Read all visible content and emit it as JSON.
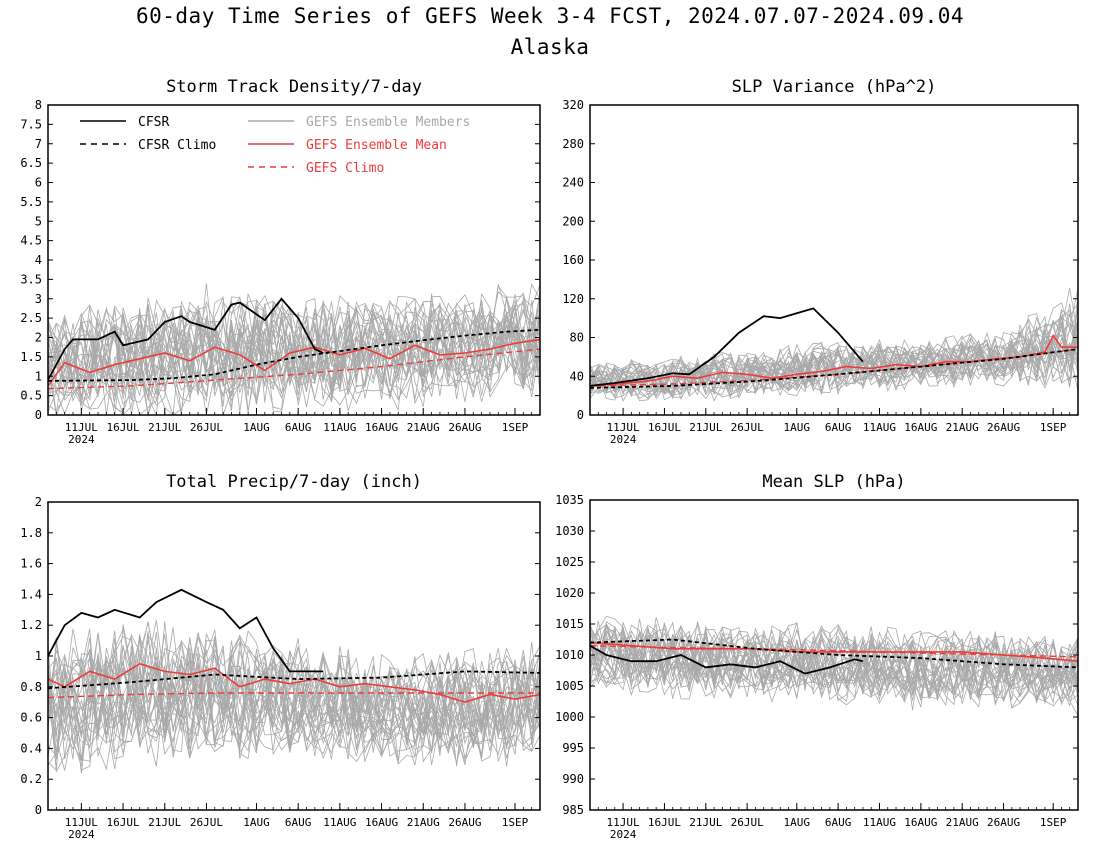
{
  "figure": {
    "title": "60-day Time Series of GEFS Week 3-4 FCST, 2024.07.07-2024.09.04",
    "subtitle": "Alaska"
  },
  "colors": {
    "cfsr": "#000000",
    "members": "#a9a9a9",
    "ens_mean": "#ee3a3a",
    "gefs_clim": "#ee3a3a",
    "axes": "#000000"
  },
  "legend": {
    "placement": "top-left of first panel",
    "entries": [
      {
        "key": "cfsr",
        "label": "CFSR",
        "style": "solid",
        "color": "#000000"
      },
      {
        "key": "cfsr_clim",
        "label": "CFSR Climo",
        "style": "dashed",
        "color": "#000000"
      },
      {
        "key": "members",
        "label": "GEFS Ensemble Members",
        "style": "solid",
        "color": "#a9a9a9"
      },
      {
        "key": "ens_mean",
        "label": "GEFS Ensemble Mean",
        "style": "solid",
        "color": "#ee3a3a"
      },
      {
        "key": "gefs_clim",
        "label": "GEFS Climo",
        "style": "dashed",
        "color": "#ee3a3a"
      }
    ]
  },
  "chart_data": [
    {
      "type": "line",
      "title": "Storm Track Density/7-day",
      "x_start": "2024-07-07",
      "x_end": "2024-09-04",
      "xtick_labels": [
        "11JUL",
        "16JUL",
        "21JUL",
        "26JUL",
        "1AUG",
        "6AUG",
        "11AUG",
        "16AUG",
        "21AUG",
        "26AUG",
        "1SEP"
      ],
      "xtick_dates": [
        "2024-07-11",
        "2024-07-16",
        "2024-07-21",
        "2024-07-26",
        "2024-08-01",
        "2024-08-06",
        "2024-08-11",
        "2024-08-16",
        "2024-08-21",
        "2024-08-26",
        "2024-09-01"
      ],
      "year_label": "2024",
      "ylim": [
        0,
        8
      ],
      "ytick_labels": [
        "0",
        "0.5",
        "1",
        "1.5",
        "2",
        "2.5",
        "3",
        "3.5",
        "4",
        "4.5",
        "5",
        "5.5",
        "6",
        "6.5",
        "7",
        "7.5",
        "8"
      ],
      "show_legend": true,
      "series": {
        "cfsr": {
          "x": [
            "2024-07-07",
            "2024-07-09",
            "2024-07-10",
            "2024-07-13",
            "2024-07-15",
            "2024-07-16",
            "2024-07-19",
            "2024-07-21",
            "2024-07-23",
            "2024-07-24",
            "2024-07-27",
            "2024-07-29",
            "2024-07-30",
            "2024-08-02",
            "2024-08-04",
            "2024-08-06",
            "2024-08-08",
            "2024-08-09"
          ],
          "y": [
            0.9,
            1.7,
            1.95,
            1.95,
            2.15,
            1.8,
            1.95,
            2.4,
            2.55,
            2.4,
            2.2,
            2.85,
            2.9,
            2.45,
            3.0,
            2.5,
            1.7,
            1.6
          ]
        },
        "cfsr_clim": {
          "x": [
            "2024-07-07",
            "2024-07-17",
            "2024-07-22",
            "2024-07-27",
            "2024-08-01",
            "2024-08-06",
            "2024-08-11",
            "2024-08-16",
            "2024-08-21",
            "2024-08-26",
            "2024-08-31",
            "2024-09-04"
          ],
          "y": [
            0.88,
            0.9,
            0.95,
            1.05,
            1.3,
            1.5,
            1.65,
            1.8,
            1.93,
            2.05,
            2.15,
            2.2
          ]
        },
        "ens_mean": {
          "x": [
            "2024-07-07",
            "2024-07-09",
            "2024-07-12",
            "2024-07-15",
            "2024-07-18",
            "2024-07-21",
            "2024-07-24",
            "2024-07-27",
            "2024-07-30",
            "2024-08-02",
            "2024-08-05",
            "2024-08-08",
            "2024-08-11",
            "2024-08-14",
            "2024-08-17",
            "2024-08-20",
            "2024-08-23",
            "2024-08-26",
            "2024-08-29",
            "2024-09-01",
            "2024-09-04"
          ],
          "y": [
            0.75,
            1.35,
            1.1,
            1.3,
            1.45,
            1.6,
            1.4,
            1.75,
            1.55,
            1.15,
            1.6,
            1.75,
            1.55,
            1.72,
            1.45,
            1.8,
            1.55,
            1.6,
            1.7,
            1.85,
            1.95
          ]
        },
        "gefs_clim": {
          "x": [
            "2024-07-07",
            "2024-07-17",
            "2024-07-27",
            "2024-08-06",
            "2024-08-16",
            "2024-08-26",
            "2024-09-04"
          ],
          "y": [
            0.68,
            0.75,
            0.9,
            1.05,
            1.25,
            1.5,
            1.7
          ]
        },
        "members_envelope": {
          "x": [
            "2024-07-07",
            "2024-07-17",
            "2024-07-27",
            "2024-08-06",
            "2024-08-16",
            "2024-08-26",
            "2024-09-04"
          ],
          "low": [
            0.1,
            0.1,
            0.2,
            0.3,
            0.4,
            0.5,
            0.6
          ],
          "high": [
            3.0,
            3.5,
            3.8,
            3.6,
            3.4,
            3.8,
            4.0
          ]
        },
        "members_count": 31
      }
    },
    {
      "type": "line",
      "title": "SLP Variance (hPa^2)",
      "x_start": "2024-07-07",
      "x_end": "2024-09-04",
      "xtick_labels": [
        "11JUL",
        "16JUL",
        "21JUL",
        "26JUL",
        "1AUG",
        "6AUG",
        "11AUG",
        "16AUG",
        "21AUG",
        "26AUG",
        "1SEP"
      ],
      "xtick_dates": [
        "2024-07-11",
        "2024-07-16",
        "2024-07-21",
        "2024-07-26",
        "2024-08-01",
        "2024-08-06",
        "2024-08-11",
        "2024-08-16",
        "2024-08-21",
        "2024-08-26",
        "2024-09-01"
      ],
      "year_label": "2024",
      "ylim": [
        0,
        320
      ],
      "ytick_labels": [
        "0",
        "40",
        "80",
        "120",
        "160",
        "200",
        "240",
        "280",
        "320"
      ],
      "show_legend": false,
      "series": {
        "cfsr": {
          "x": [
            "2024-07-07",
            "2024-07-10",
            "2024-07-14",
            "2024-07-17",
            "2024-07-19",
            "2024-07-22",
            "2024-07-25",
            "2024-07-28",
            "2024-07-30",
            "2024-08-03",
            "2024-08-06",
            "2024-08-09"
          ],
          "y": [
            30,
            33,
            38,
            43,
            42,
            60,
            85,
            102,
            100,
            110,
            85,
            55
          ]
        },
        "cfsr_clim": {
          "x": [
            "2024-07-07",
            "2024-07-17",
            "2024-07-27",
            "2024-08-06",
            "2024-08-16",
            "2024-08-26",
            "2024-09-04"
          ],
          "y": [
            28,
            30,
            35,
            42,
            50,
            58,
            68
          ]
        },
        "ens_mean": {
          "x": [
            "2024-07-07",
            "2024-07-10",
            "2024-07-14",
            "2024-07-17",
            "2024-07-20",
            "2024-07-23",
            "2024-07-26",
            "2024-07-29",
            "2024-08-01",
            "2024-08-04",
            "2024-08-07",
            "2024-08-10",
            "2024-08-13",
            "2024-08-16",
            "2024-08-19",
            "2024-08-22",
            "2024-08-25",
            "2024-08-28",
            "2024-08-31",
            "2024-09-01",
            "2024-09-02",
            "2024-09-04"
          ],
          "y": [
            30,
            32,
            35,
            40,
            38,
            44,
            42,
            38,
            42,
            45,
            50,
            48,
            52,
            50,
            55,
            55,
            58,
            60,
            65,
            82,
            70,
            70
          ]
        },
        "gefs_clim": {
          "x": [
            "2024-07-07",
            "2024-07-17",
            "2024-07-27",
            "2024-08-06",
            "2024-08-16",
            "2024-08-26",
            "2024-09-04"
          ],
          "y": [
            30,
            32,
            36,
            42,
            50,
            58,
            68
          ]
        },
        "members_envelope": {
          "x": [
            "2024-07-07",
            "2024-07-17",
            "2024-07-27",
            "2024-08-06",
            "2024-08-16",
            "2024-08-26",
            "2024-09-04"
          ],
          "low": [
            18,
            18,
            20,
            25,
            30,
            35,
            30
          ],
          "high": [
            60,
            65,
            75,
            85,
            85,
            95,
            150
          ]
        },
        "members_count": 31
      }
    },
    {
      "type": "line",
      "title": "Total Precip/7-day (inch)",
      "x_start": "2024-07-07",
      "x_end": "2024-09-04",
      "xtick_labels": [
        "11JUL",
        "16JUL",
        "21JUL",
        "26JUL",
        "1AUG",
        "6AUG",
        "11AUG",
        "16AUG",
        "21AUG",
        "26AUG",
        "1SEP"
      ],
      "xtick_dates": [
        "2024-07-11",
        "2024-07-16",
        "2024-07-21",
        "2024-07-26",
        "2024-08-01",
        "2024-08-06",
        "2024-08-11",
        "2024-08-16",
        "2024-08-21",
        "2024-08-26",
        "2024-09-01"
      ],
      "year_label": "2024",
      "ylim": [
        0,
        2
      ],
      "ytick_labels": [
        "0",
        "0.2",
        "0.4",
        "0.6",
        "0.8",
        "1",
        "1.2",
        "1.4",
        "1.6",
        "1.8",
        "2"
      ],
      "show_legend": false,
      "series": {
        "cfsr": {
          "x": [
            "2024-07-07",
            "2024-07-09",
            "2024-07-11",
            "2024-07-13",
            "2024-07-15",
            "2024-07-18",
            "2024-07-20",
            "2024-07-23",
            "2024-07-26",
            "2024-07-28",
            "2024-07-30",
            "2024-08-01",
            "2024-08-03",
            "2024-08-05",
            "2024-08-07",
            "2024-08-09"
          ],
          "y": [
            1.0,
            1.2,
            1.28,
            1.25,
            1.3,
            1.25,
            1.35,
            1.43,
            1.35,
            1.3,
            1.18,
            1.25,
            1.05,
            0.9,
            0.9,
            0.9
          ]
        },
        "cfsr_clim": {
          "x": [
            "2024-07-07",
            "2024-07-17",
            "2024-07-27",
            "2024-08-06",
            "2024-08-16",
            "2024-08-26",
            "2024-09-04"
          ],
          "y": [
            0.79,
            0.83,
            0.88,
            0.85,
            0.86,
            0.9,
            0.89
          ]
        },
        "ens_mean": {
          "x": [
            "2024-07-07",
            "2024-07-09",
            "2024-07-12",
            "2024-07-15",
            "2024-07-18",
            "2024-07-21",
            "2024-07-24",
            "2024-07-27",
            "2024-07-30",
            "2024-08-02",
            "2024-08-05",
            "2024-08-08",
            "2024-08-11",
            "2024-08-14",
            "2024-08-17",
            "2024-08-20",
            "2024-08-23",
            "2024-08-26",
            "2024-08-29",
            "2024-09-01",
            "2024-09-04"
          ],
          "y": [
            0.85,
            0.8,
            0.9,
            0.85,
            0.95,
            0.9,
            0.88,
            0.92,
            0.8,
            0.85,
            0.82,
            0.85,
            0.8,
            0.82,
            0.8,
            0.78,
            0.75,
            0.7,
            0.75,
            0.72,
            0.75
          ]
        },
        "gefs_clim": {
          "x": [
            "2024-07-07",
            "2024-07-17",
            "2024-07-27",
            "2024-08-06",
            "2024-08-16",
            "2024-08-26",
            "2024-09-04"
          ],
          "y": [
            0.73,
            0.75,
            0.76,
            0.76,
            0.76,
            0.76,
            0.76
          ]
        },
        "members_envelope": {
          "x": [
            "2024-07-07",
            "2024-07-17",
            "2024-07-27",
            "2024-08-06",
            "2024-08-16",
            "2024-08-26",
            "2024-09-04"
          ],
          "low": [
            0.3,
            0.35,
            0.4,
            0.4,
            0.35,
            0.35,
            0.35
          ],
          "high": [
            1.3,
            1.4,
            1.3,
            1.2,
            1.1,
            1.15,
            1.25
          ]
        },
        "members_count": 31
      }
    },
    {
      "type": "line",
      "title": "Mean SLP (hPa)",
      "x_start": "2024-07-07",
      "x_end": "2024-09-04",
      "xtick_labels": [
        "11JUL",
        "16JUL",
        "21JUL",
        "26JUL",
        "1AUG",
        "6AUG",
        "11AUG",
        "16AUG",
        "21AUG",
        "26AUG",
        "1SEP"
      ],
      "xtick_dates": [
        "2024-07-11",
        "2024-07-16",
        "2024-07-21",
        "2024-07-26",
        "2024-08-01",
        "2024-08-06",
        "2024-08-11",
        "2024-08-16",
        "2024-08-21",
        "2024-08-26",
        "2024-09-01"
      ],
      "year_label": "2024",
      "ylim": [
        985,
        1035
      ],
      "ytick_labels": [
        "985",
        "990",
        "995",
        "1000",
        "1005",
        "1010",
        "1015",
        "1020",
        "1025",
        "1030",
        "1035"
      ],
      "show_legend": false,
      "series": {
        "cfsr": {
          "x": [
            "2024-07-07",
            "2024-07-09",
            "2024-07-12",
            "2024-07-15",
            "2024-07-18",
            "2024-07-21",
            "2024-07-24",
            "2024-07-27",
            "2024-07-30",
            "2024-08-02",
            "2024-08-05",
            "2024-08-08",
            "2024-08-09"
          ],
          "y": [
            1011.5,
            1010,
            1009,
            1009,
            1010,
            1008,
            1008.5,
            1008,
            1009,
            1007,
            1008,
            1009.3,
            1009
          ]
        },
        "cfsr_clim": {
          "x": [
            "2024-07-07",
            "2024-07-17",
            "2024-07-27",
            "2024-08-06",
            "2024-08-16",
            "2024-08-26",
            "2024-09-04"
          ],
          "y": [
            1012,
            1012.5,
            1011,
            1010,
            1009.5,
            1008.5,
            1008
          ]
        },
        "ens_mean": {
          "x": [
            "2024-07-07",
            "2024-07-12",
            "2024-07-17",
            "2024-07-22",
            "2024-07-27",
            "2024-08-01",
            "2024-08-06",
            "2024-08-11",
            "2024-08-16",
            "2024-08-21",
            "2024-08-26",
            "2024-08-31",
            "2024-09-04"
          ],
          "y": [
            1012,
            1011.5,
            1011,
            1011,
            1011,
            1010.5,
            1010.5,
            1010.5,
            1010.5,
            1010.5,
            1010,
            1009.5,
            1009
          ]
        },
        "gefs_clim": {
          "x": [
            "2024-07-07",
            "2024-07-17",
            "2024-07-27",
            "2024-08-06",
            "2024-08-16",
            "2024-08-26",
            "2024-09-04"
          ],
          "y": [
            1011.5,
            1011.2,
            1011,
            1010.7,
            1010.3,
            1010,
            1009.7
          ]
        },
        "members_envelope": {
          "x": [
            "2024-07-07",
            "2024-07-17",
            "2024-07-27",
            "2024-08-06",
            "2024-08-16",
            "2024-08-26",
            "2024-09-04"
          ],
          "low": [
            1005,
            1004,
            1003,
            1003,
            1002,
            1002,
            1001
          ],
          "high": [
            1018,
            1018,
            1017,
            1017,
            1016,
            1016,
            1016
          ]
        },
        "members_count": 31
      }
    }
  ]
}
